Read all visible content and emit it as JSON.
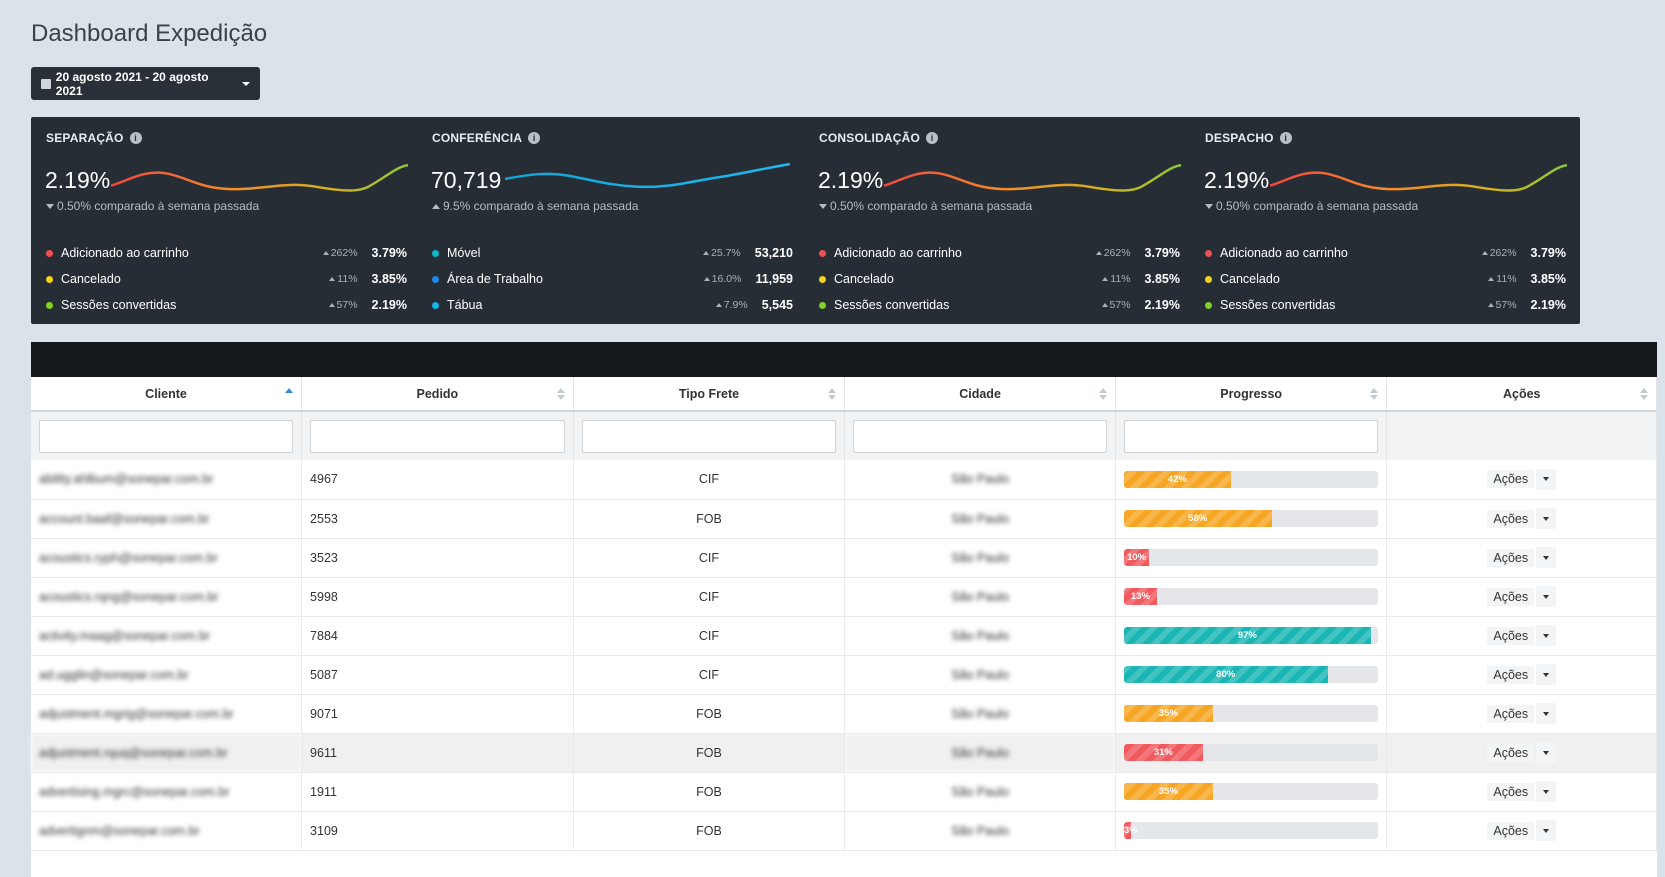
{
  "page": {
    "title": "Dashboard Expedição"
  },
  "date_range": {
    "label": "20 agosto 2021 - 20 agosto 2021"
  },
  "colors": {
    "orange": "#f6a623",
    "red": "#f0595d",
    "teal": "#1ab6b5",
    "card_bg": "#262d35",
    "dot_red": "#f05050",
    "dot_yellow": "#f5d21e",
    "dot_green": "#7ed321",
    "dot_cyan": "#11b7c9",
    "dot_blue": "#1e88e5",
    "dot_lightblue": "#14b4e6"
  },
  "cards": [
    {
      "title": "SEPARAÇÃO",
      "value": "2.19%",
      "compare": "0.50% comparado à semana passada",
      "trend": "down",
      "spark": "warm",
      "rows": [
        {
          "label": "Adicionado ao carrinho",
          "change": "262%",
          "value": "3.79%",
          "dot": "dot_red"
        },
        {
          "label": "Cancelado",
          "change": "11%",
          "value": "3.85%",
          "dot": "dot_yellow"
        },
        {
          "label": "Sessões convertidas",
          "change": "57%",
          "value": "2.19%",
          "dot": "dot_green"
        }
      ]
    },
    {
      "title": "CONFERÊNCIA",
      "value": "70,719",
      "compare": "9.5% comparado à semana passada",
      "trend": "up",
      "spark": "blue",
      "rows": [
        {
          "label": "Móvel",
          "change": "25.7%",
          "value": "53,210",
          "dot": "dot_cyan"
        },
        {
          "label": "Área de Trabalho",
          "change": "16.0%",
          "value": "11,959",
          "dot": "dot_blue"
        },
        {
          "label": "Tábua",
          "change": "7.9%",
          "value": "5,545",
          "dot": "dot_lightblue"
        }
      ]
    },
    {
      "title": "CONSOLIDAÇÃO",
      "value": "2.19%",
      "compare": "0.50% comparado à semana passada",
      "trend": "down",
      "spark": "warm",
      "rows": [
        {
          "label": "Adicionado ao carrinho",
          "change": "262%",
          "value": "3.79%",
          "dot": "dot_red"
        },
        {
          "label": "Cancelado",
          "change": "11%",
          "value": "3.85%",
          "dot": "dot_yellow"
        },
        {
          "label": "Sessões convertidas",
          "change": "57%",
          "value": "2.19%",
          "dot": "dot_green"
        }
      ]
    },
    {
      "title": "DESPACHO",
      "value": "2.19%",
      "compare": "0.50% comparado à semana passada",
      "trend": "down",
      "spark": "warm",
      "rows": [
        {
          "label": "Adicionado ao carrinho",
          "change": "262%",
          "value": "3.79%",
          "dot": "dot_red"
        },
        {
          "label": "Cancelado",
          "change": "11%",
          "value": "3.85%",
          "dot": "dot_yellow"
        },
        {
          "label": "Sessões convertidas",
          "change": "57%",
          "value": "2.19%",
          "dot": "dot_green"
        }
      ]
    }
  ],
  "table": {
    "columns": [
      "Cliente",
      "Pedido",
      "Tipo Frete",
      "Cidade",
      "Progresso",
      "Ações"
    ],
    "action_label": "Ações",
    "rows": [
      {
        "client": "ability.ahlbum@sonepar.com.br",
        "order": "4967",
        "freight": "CIF",
        "city": "São Paulo",
        "progress": 42,
        "progress_label": "42%",
        "color": "orange"
      },
      {
        "client": "account.baaf@sonepar.com.br",
        "order": "2553",
        "freight": "FOB",
        "city": "São Paulo",
        "progress": 58,
        "progress_label": "58%",
        "color": "orange"
      },
      {
        "client": "acoustics.ryph@sonepar.com.br",
        "order": "3523",
        "freight": "CIF",
        "city": "São Paulo",
        "progress": 10,
        "progress_label": "10%",
        "color": "red"
      },
      {
        "client": "acoustics.rqng@sonepar.com.br",
        "order": "5998",
        "freight": "CIF",
        "city": "São Paulo",
        "progress": 13,
        "progress_label": "13%",
        "color": "red"
      },
      {
        "client": "activity.maag@sonepar.com.br",
        "order": "7884",
        "freight": "CIF",
        "city": "São Paulo",
        "progress": 97,
        "progress_label": "97%",
        "color": "teal"
      },
      {
        "client": "ad.ugglin@sonepar.com.br",
        "order": "5087",
        "freight": "CIF",
        "city": "São Paulo",
        "progress": 80,
        "progress_label": "80%",
        "color": "teal"
      },
      {
        "client": "adjustment.mgrig@sonepar.com.br",
        "order": "9071",
        "freight": "FOB",
        "city": "São Paulo",
        "progress": 35,
        "progress_label": "35%",
        "color": "orange"
      },
      {
        "client": "adjustment.rquq@sonepar.com.br",
        "order": "9611",
        "freight": "FOB",
        "city": "São Paulo",
        "progress": 31,
        "progress_label": "31%",
        "color": "red"
      },
      {
        "client": "advertising.mgrc@sonepar.com.br",
        "order": "1911",
        "freight": "FOB",
        "city": "São Paulo",
        "progress": 35,
        "progress_label": "35%",
        "color": "orange"
      },
      {
        "client": "advertignm@sonepar.com.br",
        "order": "3109",
        "freight": "FOB",
        "city": "São Paulo",
        "progress": 3,
        "progress_label": "3%",
        "color": "red"
      }
    ]
  }
}
